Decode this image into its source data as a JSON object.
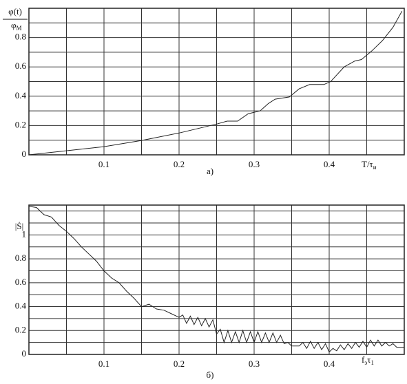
{
  "chart_data": [
    {
      "type": "line",
      "caption": "а)",
      "y_label": {
        "numerator": "φ(t)",
        "denominator": [
          "φ",
          "M"
        ]
      },
      "x_label": [
        "T/τ",
        "и"
      ],
      "xlim": [
        0,
        0.5
      ],
      "ylim": [
        0,
        1
      ],
      "xticks": [
        0.1,
        0.2,
        0.3,
        0.4
      ],
      "xminor": [
        0.05,
        0.15,
        0.25,
        0.35,
        0.45
      ],
      "yticks": [
        0,
        0.2,
        0.4,
        0.6,
        0.8
      ],
      "yminor": [
        0.1,
        0.3,
        0.5,
        0.7,
        0.9
      ],
      "grid": true,
      "color": "#222",
      "x": [
        0,
        0.1,
        0.15,
        0.2,
        0.25,
        0.264,
        0.278,
        0.292,
        0.308,
        0.319,
        0.328,
        0.347,
        0.36,
        0.374,
        0.393,
        0.402,
        0.42,
        0.434,
        0.443,
        0.457,
        0.471,
        0.485,
        0.497
      ],
      "values": [
        0,
        0.056,
        0.098,
        0.149,
        0.21,
        0.23,
        0.23,
        0.28,
        0.3,
        0.35,
        0.38,
        0.395,
        0.45,
        0.48,
        0.48,
        0.5,
        0.6,
        0.64,
        0.65,
        0.71,
        0.78,
        0.87,
        0.98
      ]
    },
    {
      "type": "line",
      "caption": "б)",
      "y_label": "|Ṡ|",
      "x_label": [
        "f",
        "э",
        "τ",
        "1"
      ],
      "xlim": [
        0,
        0.5
      ],
      "ylim": [
        0,
        1.25
      ],
      "xticks": [
        0.1,
        0.2,
        0.3,
        0.4
      ],
      "xminor": [
        0.05,
        0.15,
        0.25,
        0.35,
        0.45
      ],
      "yticks": [
        0,
        0.2,
        0.4,
        0.6,
        0.8,
        1
      ],
      "yminor": [
        0.1,
        0.3,
        0.5,
        0.7,
        0.9,
        1.1,
        1.2
      ],
      "grid": true,
      "color": "#222",
      "x": [
        0,
        0.01,
        0.02,
        0.03,
        0.04,
        0.05,
        0.06,
        0.07,
        0.08,
        0.09,
        0.1,
        0.11,
        0.12,
        0.13,
        0.14,
        0.15,
        0.16,
        0.17,
        0.18,
        0.19,
        0.2,
        0.205,
        0.21,
        0.215,
        0.22,
        0.225,
        0.23,
        0.235,
        0.24,
        0.245,
        0.25,
        0.255,
        0.26,
        0.265,
        0.27,
        0.275,
        0.28,
        0.285,
        0.29,
        0.295,
        0.3,
        0.305,
        0.31,
        0.315,
        0.32,
        0.325,
        0.33,
        0.335,
        0.34,
        0.345,
        0.35,
        0.36,
        0.365,
        0.37,
        0.375,
        0.38,
        0.385,
        0.39,
        0.395,
        0.4,
        0.405,
        0.41,
        0.415,
        0.42,
        0.425,
        0.43,
        0.435,
        0.44,
        0.445,
        0.45,
        0.455,
        0.46,
        0.465,
        0.47,
        0.475,
        0.48,
        0.485,
        0.49,
        0.5
      ],
      "values": [
        1.24,
        1.23,
        1.17,
        1.15,
        1.08,
        1.03,
        0.97,
        0.9,
        0.84,
        0.78,
        0.7,
        0.64,
        0.6,
        0.53,
        0.47,
        0.4,
        0.42,
        0.38,
        0.37,
        0.34,
        0.31,
        0.33,
        0.26,
        0.32,
        0.25,
        0.31,
        0.24,
        0.3,
        0.23,
        0.29,
        0.17,
        0.21,
        0.1,
        0.2,
        0.1,
        0.19,
        0.1,
        0.2,
        0.1,
        0.19,
        0.1,
        0.19,
        0.1,
        0.18,
        0.1,
        0.18,
        0.1,
        0.16,
        0.09,
        0.1,
        0.07,
        0.07,
        0.1,
        0.05,
        0.11,
        0.05,
        0.1,
        0.04,
        0.09,
        0.02,
        0.05,
        0.03,
        0.08,
        0.04,
        0.09,
        0.05,
        0.1,
        0.06,
        0.11,
        0.06,
        0.12,
        0.07,
        0.12,
        0.07,
        0.1,
        0.07,
        0.09,
        0.06,
        0.06
      ]
    }
  ]
}
